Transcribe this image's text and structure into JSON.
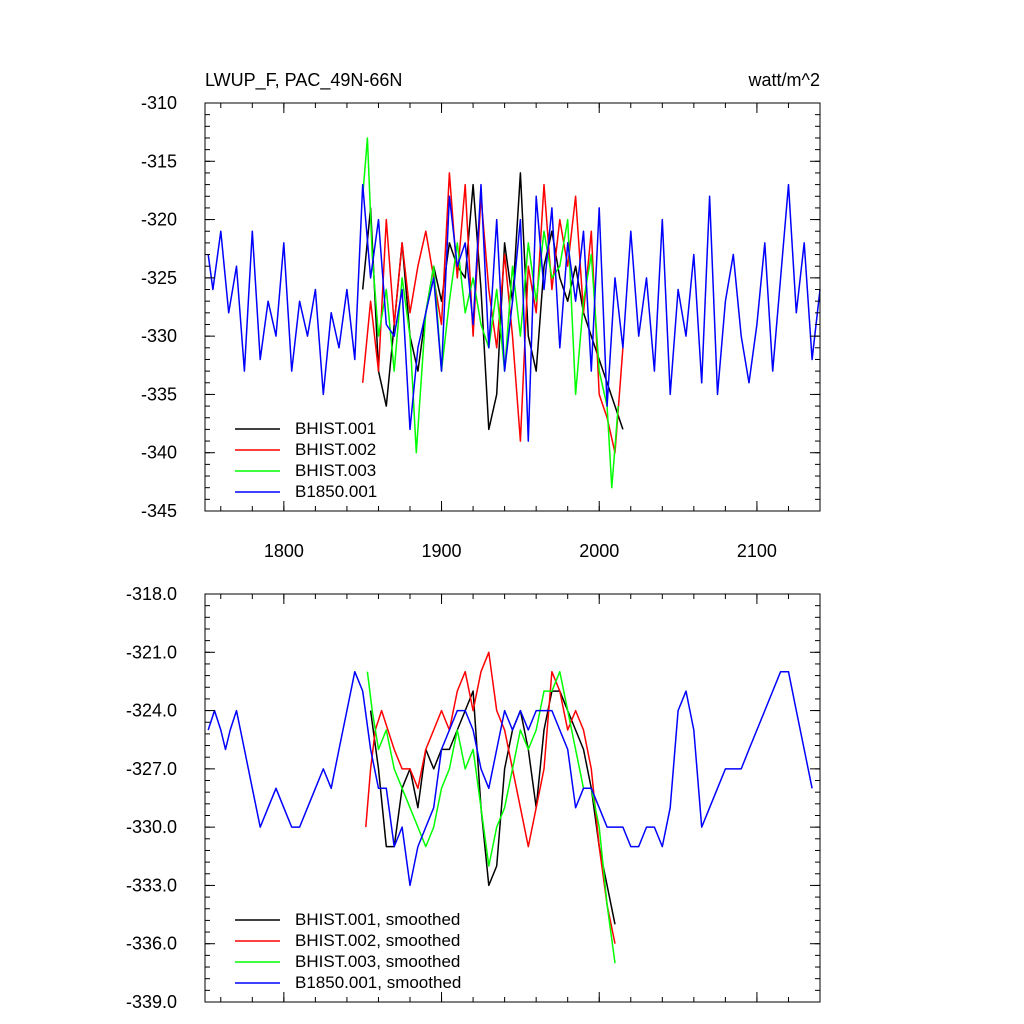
{
  "chart_data": [
    {
      "type": "line",
      "title": "LWUP_F, PAC_49N-66N",
      "units": "watt/m^2",
      "xlim": [
        1750,
        2140
      ],
      "ylim": [
        -345,
        -310
      ],
      "xticks": [
        1800,
        1900,
        2000,
        2100
      ],
      "xtick_labels": [
        "1800",
        "1900",
        "2000",
        "2100"
      ],
      "yticks": [
        -345,
        -340,
        -335,
        -330,
        -325,
        -320,
        -315,
        -310
      ],
      "ytick_labels": [
        "-345",
        "-340",
        "-335",
        "-330",
        "-325",
        "-320",
        "-315",
        "-310"
      ],
      "legend_position": "bottom-left",
      "series": [
        {
          "name": "BHIST.001",
          "color": "#000000",
          "x": [
            1850,
            1855,
            1860,
            1865,
            1870,
            1875,
            1880,
            1885,
            1890,
            1895,
            1900,
            1905,
            1910,
            1915,
            1920,
            1925,
            1930,
            1935,
            1940,
            1945,
            1950,
            1955,
            1960,
            1965,
            1970,
            1975,
            1980,
            1985,
            1990,
            1995,
            2000,
            2005,
            2010,
            2015
          ],
          "y": [
            -326,
            -319,
            -333,
            -336,
            -329,
            -322,
            -330,
            -333,
            -328,
            -324,
            -327,
            -322,
            -324,
            -325,
            -317,
            -326,
            -338,
            -335,
            -322,
            -327,
            -316,
            -330,
            -333,
            -324,
            -321,
            -325,
            -327,
            -324,
            -328,
            -330,
            -332,
            -334,
            -336,
            -338
          ]
        },
        {
          "name": "BHIST.002",
          "color": "#ff0000",
          "x": [
            1850,
            1855,
            1860,
            1865,
            1870,
            1875,
            1880,
            1885,
            1890,
            1895,
            1900,
            1905,
            1910,
            1915,
            1920,
            1925,
            1930,
            1935,
            1940,
            1945,
            1950,
            1955,
            1960,
            1965,
            1970,
            1975,
            1980,
            1985,
            1990,
            1995,
            2000,
            2005,
            2010,
            2015
          ],
          "y": [
            -334,
            -327,
            -333,
            -320,
            -329,
            -322,
            -328,
            -324,
            -321,
            -325,
            -329,
            -316,
            -325,
            -317,
            -330,
            -318,
            -326,
            -331,
            -323,
            -330,
            -339,
            -324,
            -328,
            -317,
            -326,
            -320,
            -324,
            -318,
            -328,
            -321,
            -335,
            -337,
            -340,
            -331
          ]
        },
        {
          "name": "BHIST.003",
          "color": "#00ff00",
          "x": [
            1850,
            1853,
            1856,
            1860,
            1865,
            1870,
            1875,
            1880,
            1884,
            1890,
            1895,
            1900,
            1905,
            1910,
            1915,
            1920,
            1925,
            1930,
            1935,
            1940,
            1945,
            1950,
            1955,
            1960,
            1965,
            1970,
            1975,
            1980,
            1985,
            1990,
            1995,
            2000,
            2005,
            2008,
            2012
          ],
          "y": [
            -318,
            -313,
            -323,
            -330,
            -326,
            -333,
            -325,
            -330,
            -340,
            -328,
            -324,
            -333,
            -327,
            -322,
            -328,
            -325,
            -329,
            -331,
            -326,
            -333,
            -324,
            -330,
            -322,
            -327,
            -321,
            -325,
            -324,
            -320,
            -335,
            -327,
            -323,
            -333,
            -336,
            -343,
            -336
          ]
        },
        {
          "name": "B1850.001",
          "color": "#0000ff",
          "x": [
            1752,
            1755,
            1760,
            1765,
            1770,
            1775,
            1780,
            1785,
            1790,
            1795,
            1800,
            1805,
            1810,
            1815,
            1820,
            1825,
            1830,
            1835,
            1840,
            1845,
            1850,
            1855,
            1860,
            1865,
            1870,
            1875,
            1880,
            1885,
            1890,
            1895,
            1900,
            1905,
            1910,
            1915,
            1920,
            1925,
            1930,
            1935,
            1940,
            1945,
            1950,
            1955,
            1960,
            1965,
            1970,
            1975,
            1980,
            1985,
            1990,
            1995,
            2000,
            2005,
            2010,
            2015,
            2020,
            2025,
            2030,
            2035,
            2040,
            2045,
            2050,
            2055,
            2060,
            2065,
            2070,
            2075,
            2080,
            2085,
            2090,
            2095,
            2100,
            2105,
            2110,
            2115,
            2120,
            2125,
            2130,
            2135,
            2140
          ],
          "y": [
            -323,
            -326,
            -321,
            -328,
            -324,
            -333,
            -321,
            -332,
            -327,
            -330,
            -322,
            -333,
            -327,
            -330,
            -326,
            -335,
            -328,
            -331,
            -326,
            -332,
            -317,
            -325,
            -320,
            -329,
            -330,
            -326,
            -338,
            -331,
            -328,
            -325,
            -333,
            -318,
            -324,
            -322,
            -329,
            -317,
            -331,
            -320,
            -333,
            -327,
            -320,
            -339,
            -318,
            -326,
            -319,
            -331,
            -322,
            -327,
            -321,
            -333,
            -319,
            -336,
            -325,
            -331,
            -321,
            -330,
            -325,
            -333,
            -320,
            -335,
            -326,
            -330,
            -323,
            -334,
            -318,
            -335,
            -327,
            -323,
            -330,
            -334,
            -329,
            -322,
            -333,
            -325,
            -317,
            -328,
            -322,
            -332,
            -326
          ]
        }
      ]
    },
    {
      "type": "line",
      "xlim": [
        1750,
        2140
      ],
      "ylim": [
        -339,
        -318
      ],
      "xticks": [
        1800,
        1900,
        2000,
        2100
      ],
      "yticks": [
        -339,
        -336,
        -333,
        -330,
        -327,
        -324,
        -321,
        -318
      ],
      "ytick_labels": [
        "-339.0",
        "-336.0",
        "-333.0",
        "-330.0",
        "-327.0",
        "-324.0",
        "-321.0",
        "-318.0"
      ],
      "legend_position": "bottom-left",
      "series": [
        {
          "name": "BHIST.001, smoothed",
          "color": "#000000",
          "x": [
            1855,
            1860,
            1865,
            1870,
            1875,
            1880,
            1885,
            1890,
            1895,
            1900,
            1905,
            1910,
            1915,
            1920,
            1925,
            1930,
            1935,
            1940,
            1945,
            1950,
            1955,
            1960,
            1965,
            1970,
            1975,
            1980,
            1985,
            1990,
            1995,
            2000,
            2005,
            2010
          ],
          "y": [
            -324,
            -327,
            -331,
            -331,
            -328,
            -327,
            -329,
            -326,
            -327,
            -326,
            -326,
            -325,
            -324,
            -323,
            -329,
            -333,
            -332,
            -327,
            -325,
            -324,
            -326,
            -329,
            -325,
            -323,
            -323,
            -324,
            -325,
            -326,
            -328,
            -331,
            -333,
            -335
          ]
        },
        {
          "name": "BHIST.002, smoothed",
          "color": "#ff0000",
          "x": [
            1852,
            1855,
            1858,
            1862,
            1866,
            1870,
            1875,
            1880,
            1885,
            1890,
            1895,
            1900,
            1905,
            1910,
            1915,
            1920,
            1925,
            1930,
            1935,
            1940,
            1945,
            1950,
            1955,
            1960,
            1965,
            1970,
            1975,
            1980,
            1985,
            1990,
            1995,
            2000,
            2005,
            2010
          ],
          "y": [
            -330,
            -327,
            -325,
            -324,
            -325,
            -326,
            -327,
            -327,
            -328,
            -326,
            -325,
            -324,
            -325,
            -323,
            -322,
            -324,
            -322,
            -321,
            -324,
            -325,
            -327,
            -329,
            -331,
            -329,
            -327,
            -322,
            -323,
            -325,
            -324,
            -325,
            -327,
            -331,
            -334,
            -336
          ]
        },
        {
          "name": "BHIST.003, smoothed",
          "color": "#00ff00",
          "x": [
            1853,
            1856,
            1860,
            1865,
            1870,
            1875,
            1880,
            1885,
            1890,
            1895,
            1900,
            1905,
            1910,
            1915,
            1920,
            1925,
            1930,
            1935,
            1940,
            1945,
            1950,
            1955,
            1960,
            1965,
            1970,
            1975,
            1980,
            1985,
            1990,
            1995,
            2000,
            2005,
            2010
          ],
          "y": [
            -322,
            -324,
            -326,
            -325,
            -327,
            -328,
            -329,
            -330,
            -331,
            -330,
            -328,
            -327,
            -325,
            -327,
            -326,
            -329,
            -332,
            -330,
            -329,
            -327,
            -325,
            -326,
            -325,
            -323,
            -323,
            -322,
            -324,
            -326,
            -328,
            -328,
            -330,
            -334,
            -337
          ]
        },
        {
          "name": "B1850.001, smoothed",
          "color": "#0000ff",
          "x": [
            1752,
            1756,
            1760,
            1763,
            1766,
            1770,
            1775,
            1780,
            1785,
            1790,
            1795,
            1800,
            1805,
            1810,
            1815,
            1820,
            1825,
            1830,
            1835,
            1840,
            1845,
            1850,
            1855,
            1860,
            1865,
            1870,
            1875,
            1880,
            1885,
            1890,
            1895,
            1900,
            1905,
            1910,
            1915,
            1920,
            1925,
            1930,
            1935,
            1940,
            1945,
            1950,
            1955,
            1960,
            1965,
            1970,
            1975,
            1980,
            1985,
            1990,
            1995,
            2000,
            2005,
            2010,
            2015,
            2020,
            2025,
            2030,
            2035,
            2040,
            2045,
            2050,
            2055,
            2060,
            2065,
            2070,
            2075,
            2080,
            2085,
            2090,
            2095,
            2100,
            2105,
            2110,
            2115,
            2120,
            2125,
            2130,
            2135
          ],
          "y": [
            -325,
            -324,
            -325,
            -326,
            -325,
            -324,
            -326,
            -328,
            -330,
            -329,
            -328,
            -329,
            -330,
            -330,
            -329,
            -328,
            -327,
            -328,
            -326,
            -324,
            -322,
            -323,
            -326,
            -328,
            -328,
            -331,
            -330,
            -333,
            -331,
            -330,
            -329,
            -326,
            -325,
            -324,
            -324,
            -325,
            -327,
            -328,
            -326,
            -324,
            -325,
            -324,
            -325,
            -324,
            -324,
            -324,
            -325,
            -326,
            -329,
            -328,
            -328,
            -329,
            -330,
            -330,
            -330,
            -331,
            -331,
            -330,
            -330,
            -331,
            -329,
            -324,
            -323,
            -325,
            -330,
            -329,
            -328,
            -327,
            -327,
            -327,
            -326,
            -325,
            -324,
            -323,
            -322,
            -322,
            -324,
            -326,
            -328
          ]
        }
      ]
    }
  ]
}
